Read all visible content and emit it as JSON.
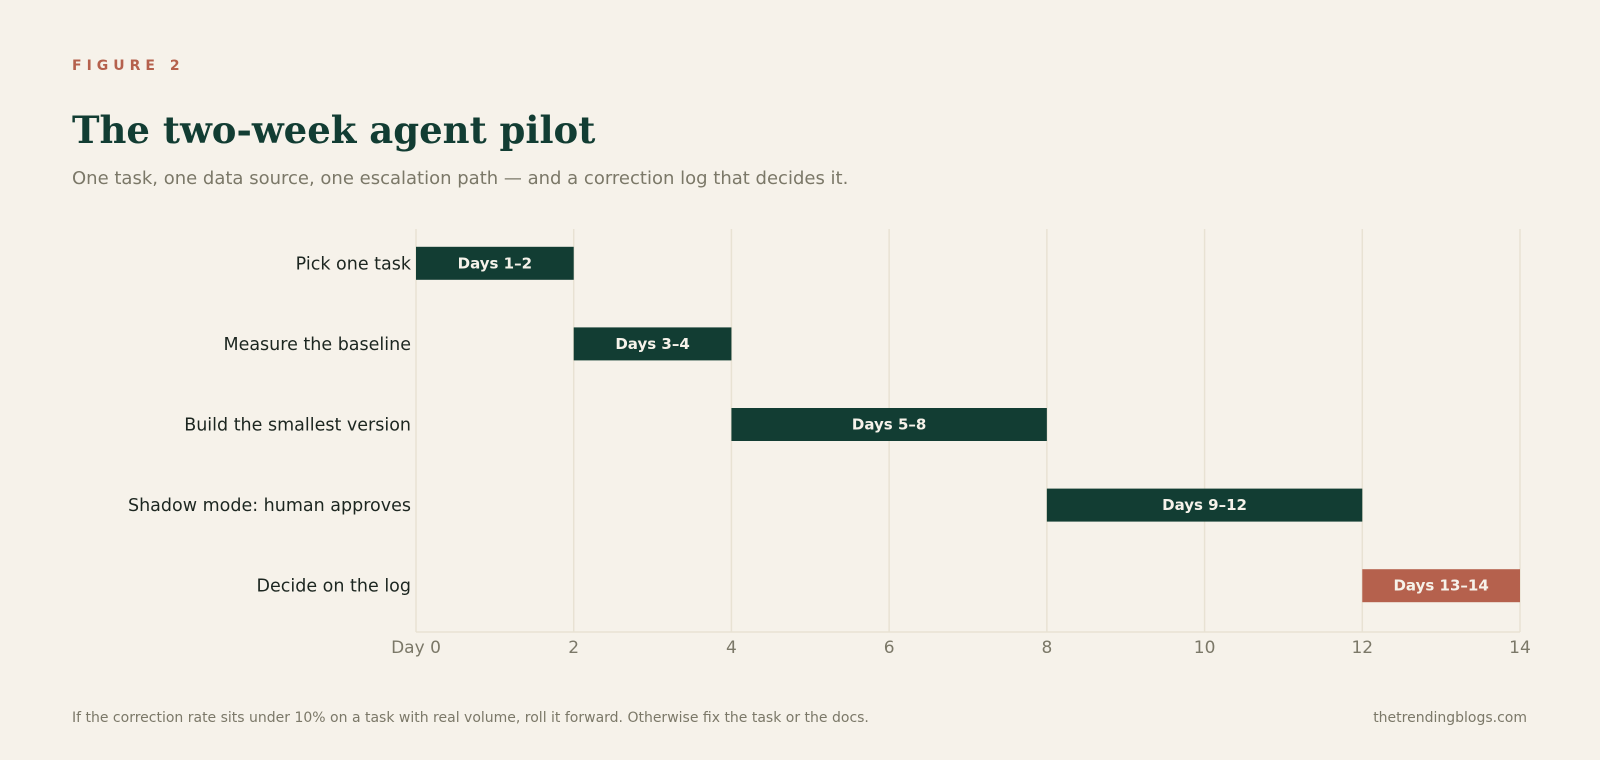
{
  "figure_label": "FIGURE 2",
  "title": "The two-week agent pilot",
  "subtitle": "One task, one data source, one escalation path — and a correction log that decides it.",
  "footnote": "If the correction rate sits under 10% on a task with real volume, roll it forward. Otherwise fix the task or the docs.",
  "source": "thetrendingblogs.com",
  "colors": {
    "background": "#f6f2ea",
    "bar_primary": "#123d33",
    "bar_accent": "#b5614d",
    "grid": "#e8e2d3",
    "axis_text": "#7b7868",
    "label_text": "#1c2620"
  },
  "chart_data": {
    "type": "bar",
    "orientation": "horizontal",
    "x_tick_labels": [
      "Day 0",
      "2",
      "4",
      "6",
      "8",
      "10",
      "12",
      "14"
    ],
    "x_ticks": [
      0,
      2,
      4,
      6,
      8,
      10,
      12,
      14
    ],
    "xlim": [
      0,
      14
    ],
    "grid": true,
    "tasks": [
      {
        "name": "Pick one task",
        "start": 0,
        "end": 2,
        "label": "Days 1–2",
        "highlight": false
      },
      {
        "name": "Measure the baseline",
        "start": 2,
        "end": 4,
        "label": "Days 3–4",
        "highlight": false
      },
      {
        "name": "Build the smallest version",
        "start": 4,
        "end": 8,
        "label": "Days 5–8",
        "highlight": false
      },
      {
        "name": "Shadow mode: human approves",
        "start": 8,
        "end": 12,
        "label": "Days 9–12",
        "highlight": false
      },
      {
        "name": "Decide on the log",
        "start": 12,
        "end": 14,
        "label": "Days 13–14",
        "highlight": true
      }
    ]
  }
}
